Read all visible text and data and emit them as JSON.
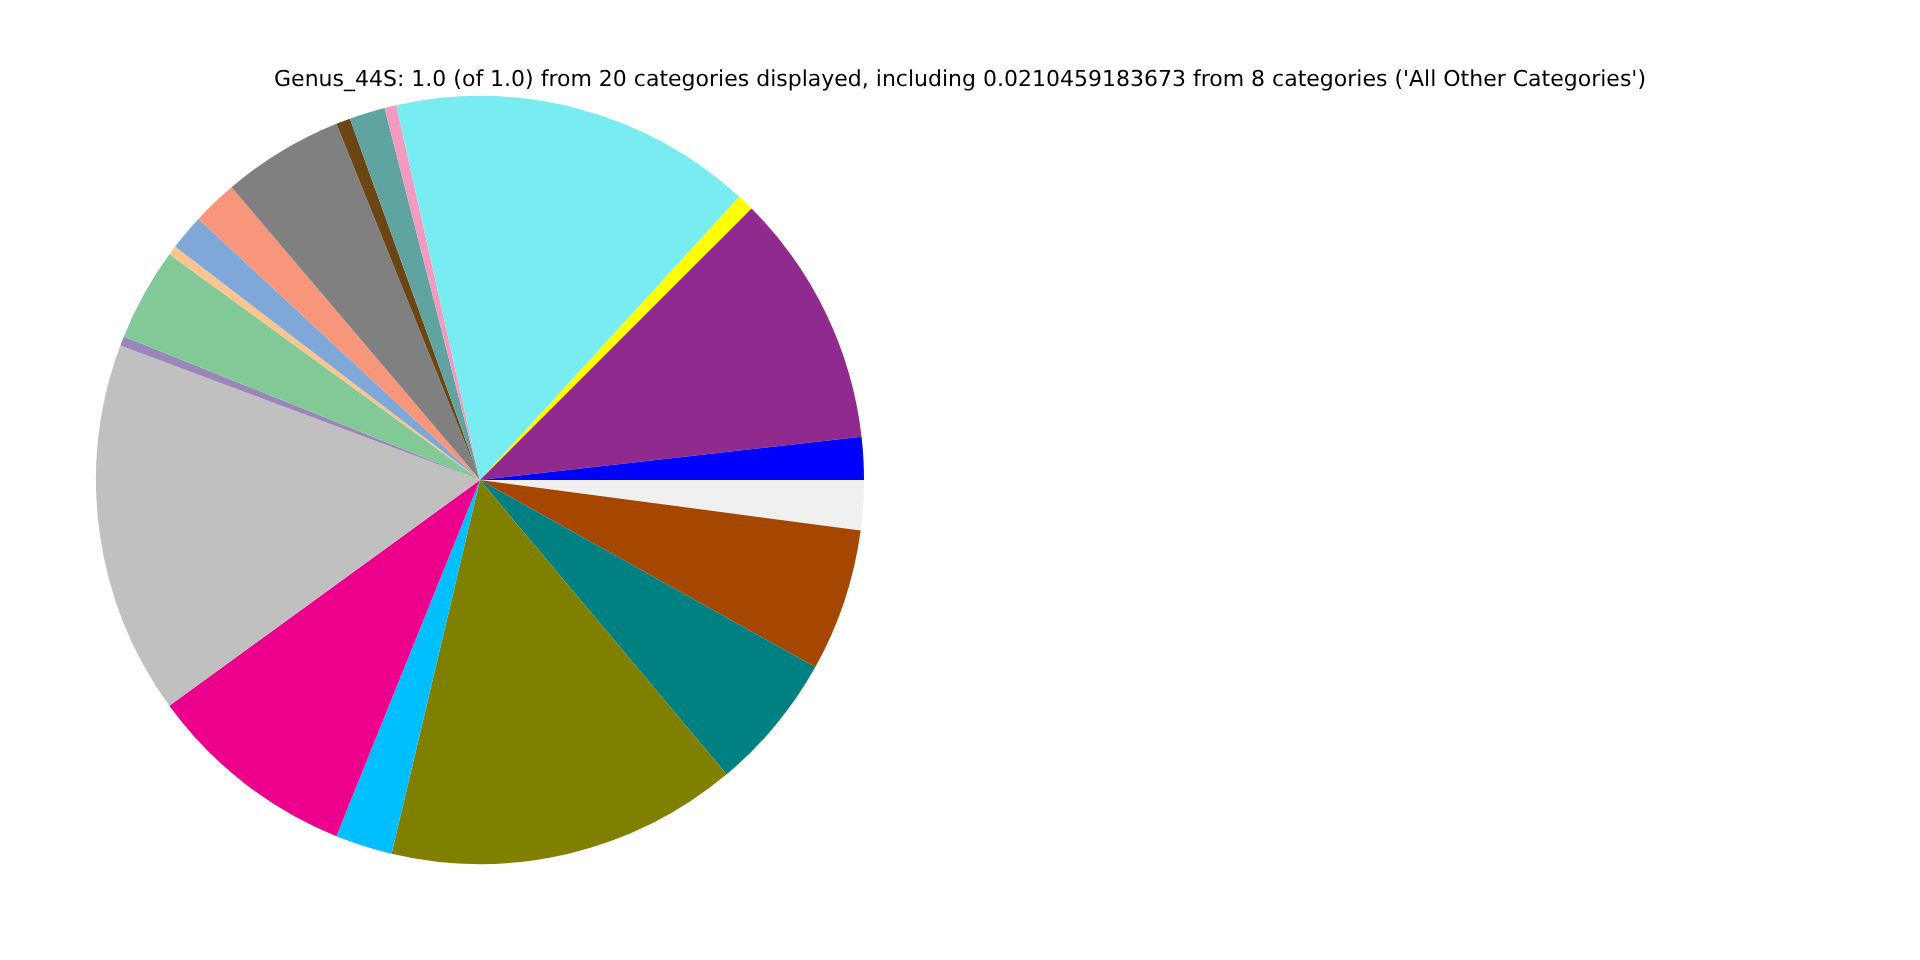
{
  "chart_data": {
    "type": "pie",
    "title": "Genus_44S: 1.0 (of 1.0) from 20 categories displayed, including 0.0210459183673 from 8 categories ('All Other Categories')",
    "categories": [
      null,
      null,
      null,
      null,
      null,
      null,
      null,
      null,
      null,
      null,
      null,
      null,
      null,
      null,
      null,
      null,
      null,
      null,
      null,
      null
    ],
    "values": [
      2.1,
      6.0,
      5.8,
      14.8,
      2.4,
      8.9,
      15.7,
      0.4,
      3.9,
      0.4,
      1.5,
      1.9,
      5.1,
      0.6,
      1.5,
      0.5,
      15.3,
      0.7,
      10.7,
      1.8
    ],
    "colors": [
      "#f0f0f0",
      "#a64700",
      "#008080",
      "#808000",
      "#00bfff",
      "#ec008c",
      "#c0c0c0",
      "#9b86b8",
      "#82c997",
      "#fbc58f",
      "#7fa8d9",
      "#f7967a",
      "#808080",
      "#6b4513",
      "#5fa4a0",
      "#f29ac0",
      "#79ecf2",
      "#ffff00",
      "#902a8e",
      "#0000ff"
    ],
    "legend": false
  }
}
